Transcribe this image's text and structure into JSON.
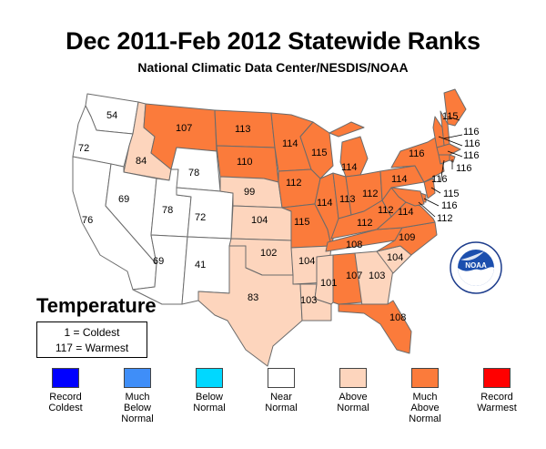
{
  "header": {
    "title": "Dec 2011-Feb 2012 Statewide Ranks",
    "subtitle": "National Climatic Data Center/NESDIS/NOAA"
  },
  "variable_label": "Temperature",
  "key": {
    "line1": "1 = Coldest",
    "line2": "117 = Warmest"
  },
  "logo": {
    "text": "NOAA"
  },
  "colors": {
    "record_coldest": "#0000ff",
    "much_below": "#3f8ef8",
    "below": "#00d8ff",
    "near": "#ffffff",
    "above": "#fdd5bd",
    "much_above": "#fb7b3b",
    "record_warmest": "#ff0000"
  },
  "legend": [
    {
      "label": "Record\nColdest",
      "color": "#0000ff"
    },
    {
      "label": "Much\nBelow\nNormal",
      "color": "#3f8ef8"
    },
    {
      "label": "Below\nNormal",
      "color": "#00d8ff"
    },
    {
      "label": "Near\nNormal",
      "color": "#ffffff"
    },
    {
      "label": "Above\nNormal",
      "color": "#fdd5bd"
    },
    {
      "label": "Much\nAbove\nNormal",
      "color": "#fb7b3b"
    },
    {
      "label": "Record\nWarmest",
      "color": "#ff0000"
    }
  ],
  "states": [
    {
      "id": "WA",
      "rank": "54",
      "category": "near"
    },
    {
      "id": "OR",
      "rank": "72",
      "category": "near"
    },
    {
      "id": "CA",
      "rank": "76",
      "category": "near"
    },
    {
      "id": "ID",
      "rank": "84",
      "category": "above"
    },
    {
      "id": "NV",
      "rank": "69",
      "category": "near"
    },
    {
      "id": "UT",
      "rank": "78",
      "category": "near"
    },
    {
      "id": "AZ",
      "rank": "69",
      "category": "near"
    },
    {
      "id": "MT",
      "rank": "107",
      "category": "much_above"
    },
    {
      "id": "WY",
      "rank": "78",
      "category": "near"
    },
    {
      "id": "CO",
      "rank": "72",
      "category": "near"
    },
    {
      "id": "NM",
      "rank": "41",
      "category": "near"
    },
    {
      "id": "ND",
      "rank": "113",
      "category": "much_above"
    },
    {
      "id": "SD",
      "rank": "110",
      "category": "much_above"
    },
    {
      "id": "NE",
      "rank": "99",
      "category": "above"
    },
    {
      "id": "KS",
      "rank": "104",
      "category": "above"
    },
    {
      "id": "OK",
      "rank": "102",
      "category": "above"
    },
    {
      "id": "TX",
      "rank": "83",
      "category": "above"
    },
    {
      "id": "MN",
      "rank": "114",
      "category": "much_above"
    },
    {
      "id": "IA",
      "rank": "112",
      "category": "much_above"
    },
    {
      "id": "MO",
      "rank": "115",
      "category": "much_above"
    },
    {
      "id": "AR",
      "rank": "104",
      "category": "above"
    },
    {
      "id": "LA",
      "rank": "103",
      "category": "above"
    },
    {
      "id": "WI",
      "rank": "115",
      "category": "much_above"
    },
    {
      "id": "IL",
      "rank": "114",
      "category": "much_above"
    },
    {
      "id": "MI",
      "rank": "114",
      "category": "much_above"
    },
    {
      "id": "IN",
      "rank": "113",
      "category": "much_above"
    },
    {
      "id": "OH",
      "rank": "112",
      "category": "much_above"
    },
    {
      "id": "KY",
      "rank": "112",
      "category": "much_above"
    },
    {
      "id": "TN",
      "rank": "108",
      "category": "much_above"
    },
    {
      "id": "MS",
      "rank": "101",
      "category": "above"
    },
    {
      "id": "AL",
      "rank": "107",
      "category": "much_above"
    },
    {
      "id": "GA",
      "rank": "103",
      "category": "above"
    },
    {
      "id": "FL",
      "rank": "108",
      "category": "much_above"
    },
    {
      "id": "SC",
      "rank": "104",
      "category": "above"
    },
    {
      "id": "NC",
      "rank": "109",
      "category": "much_above"
    },
    {
      "id": "VA",
      "rank": "114",
      "category": "much_above"
    },
    {
      "id": "WV",
      "rank": "112",
      "category": "much_above"
    },
    {
      "id": "PA",
      "rank": "114",
      "category": "much_above"
    },
    {
      "id": "NY",
      "rank": "116",
      "category": "much_above"
    },
    {
      "id": "ME",
      "rank": "115",
      "category": "much_above"
    },
    {
      "id": "NH",
      "rank": "116",
      "category": "much_above"
    },
    {
      "id": "VT",
      "rank": "116",
      "category": "much_above"
    },
    {
      "id": "MA",
      "rank": "116",
      "category": "much_above"
    },
    {
      "id": "RI",
      "rank": "116",
      "category": "much_above"
    },
    {
      "id": "CT",
      "rank": "116",
      "category": "much_above"
    },
    {
      "id": "NJ",
      "rank": "115",
      "category": "much_above"
    },
    {
      "id": "DE",
      "rank": "116",
      "category": "much_above"
    },
    {
      "id": "MD",
      "rank": "112",
      "category": "much_above"
    }
  ]
}
